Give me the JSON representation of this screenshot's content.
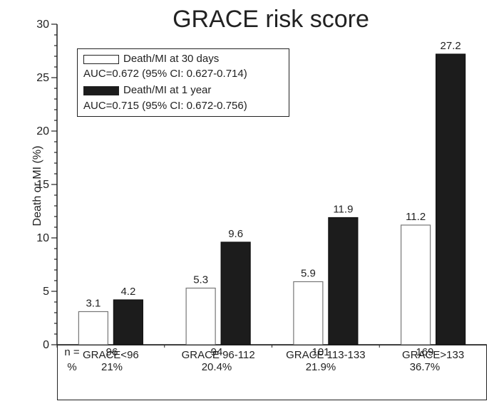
{
  "chart_data": {
    "type": "bar",
    "title": "GRACE risk score",
    "ylabel": "Death or MI (%)",
    "xlabel": "",
    "ylim": [
      0,
      30
    ],
    "yticks": [
      0,
      5,
      10,
      15,
      20,
      25,
      30
    ],
    "categories": [
      "GRACE<96",
      "GRACE 96-112",
      "GRACE 113-133",
      "GRACE>133"
    ],
    "series": [
      {
        "name": "Death/MI at 30 days",
        "auc": "AUC=0.672 (95% CI: 0.627-0.714)",
        "color": "#ffffff",
        "values": [
          3.1,
          5.3,
          5.9,
          11.2
        ]
      },
      {
        "name": "Death/MI at 1 year",
        "auc": "AUC=0.715 (95% CI: 0.672-0.756)",
        "color": "#1c1c1c",
        "values": [
          4.2,
          9.6,
          11.9,
          27.2
        ]
      }
    ],
    "legend_position": "top-left",
    "table": {
      "row_labels": [
        "n =",
        "%"
      ],
      "n": [
        "96",
        "94",
        "101",
        "169"
      ],
      "pct": [
        "21%",
        "20.4%",
        "21.9%",
        "36.7%"
      ]
    }
  }
}
